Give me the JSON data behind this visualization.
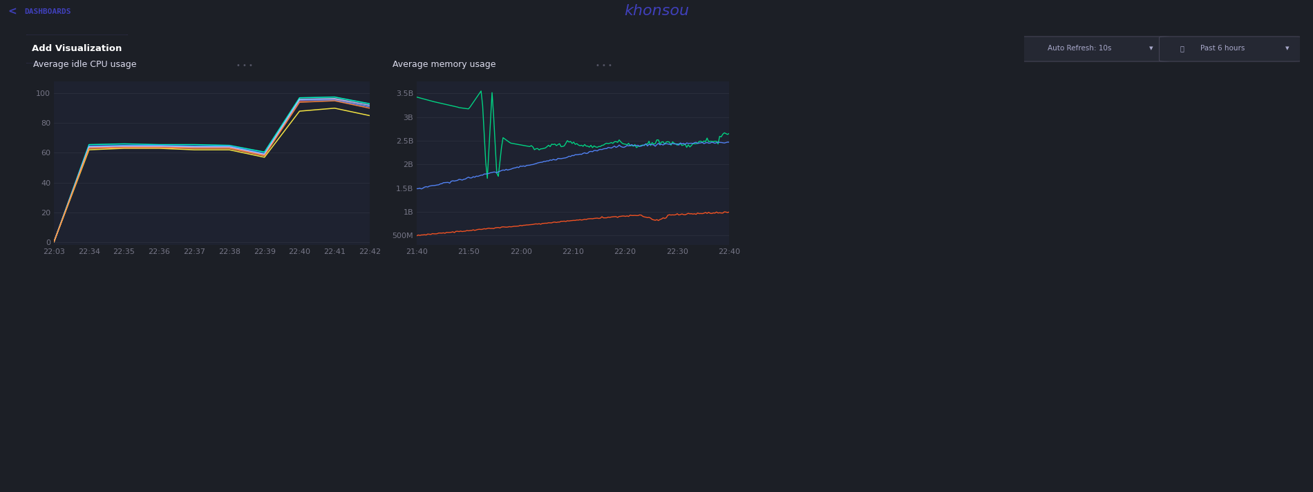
{
  "bg_color": "#1c1f26",
  "panel_bg": "#1e2230",
  "header_bg": "#ebebf0",
  "header_text_color": "#4040bb",
  "header_title": "khonsou",
  "nav_text": "DASHBOARDS",
  "btn_text": "Add Visualization",
  "btn_border": "#7060cc",
  "btn_bg": "#1c1f26",
  "auto_refresh_text": "Auto Refresh: 10s",
  "past_text": "Past 6 hours",
  "cpu_title": "Average idle CPU usage",
  "cpu_yticks": [
    0,
    20,
    40,
    60,
    80,
    100
  ],
  "cpu_xticks": [
    "22:03",
    "22:34",
    "22:35",
    "22:36",
    "22:37",
    "22:38",
    "22:39",
    "22:40",
    "22:41",
    "22:42"
  ],
  "cpu_ylim": [
    -2,
    108
  ],
  "cpu_xlim": [
    0,
    9
  ],
  "mem_title": "Average memory usage",
  "mem_ytick_labels": [
    "500M",
    "1B",
    "1.5B",
    "2B",
    "2.5B",
    "3B",
    "3.5B"
  ],
  "mem_ytick_vals": [
    0.5,
    1.0,
    1.5,
    2.0,
    2.5,
    3.0,
    3.5
  ],
  "mem_xticks": [
    "21:40",
    "21:50",
    "22:00",
    "22:10",
    "22:20",
    "22:30",
    "22:40"
  ],
  "mem_ylim": [
    0.3,
    3.75
  ],
  "mem_xlim": [
    0,
    6
  ],
  "cpu_colors": [
    "#00ffcc",
    "#ff6b6b",
    "#4488ff",
    "#aaccff",
    "#ffee44",
    "#ff8844"
  ],
  "mem_colors": [
    "#00dd88",
    "#5588ff",
    "#ff5522"
  ],
  "grid_color": "#2e3340",
  "tick_color": "#777788",
  "title_color": "#ccccdd",
  "panel_title_color": "#ddddee",
  "label_fontsize": 8,
  "title_fontsize": 9
}
